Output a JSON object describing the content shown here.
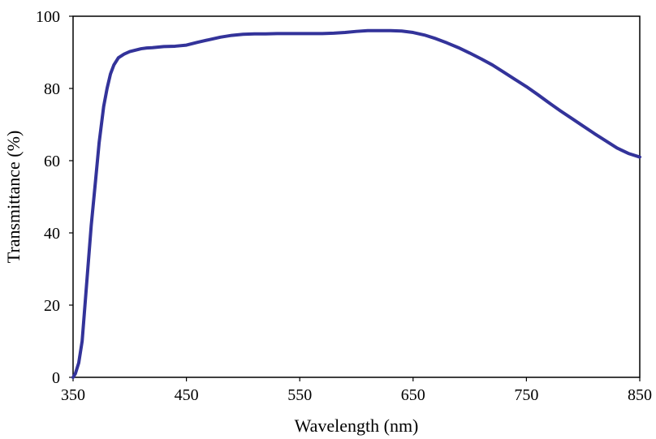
{
  "chart_data": {
    "type": "line",
    "title": "",
    "xlabel": "Wavelength (nm)",
    "ylabel": "Transmittance (%)",
    "xlim": [
      350,
      850
    ],
    "ylim": [
      0,
      100
    ],
    "xticks": [
      350,
      450,
      550,
      650,
      750,
      850
    ],
    "yticks": [
      0,
      20,
      40,
      60,
      80,
      100
    ],
    "xtick_labels": [
      "350",
      "450",
      "550",
      "650",
      "750",
      "850"
    ],
    "ytick_labels": [
      "0",
      "20",
      "40",
      "60",
      "80",
      "100"
    ],
    "grid": false,
    "legend": "none",
    "series": [
      {
        "color": "#33339a",
        "x": [
          350,
          352,
          355,
          358,
          360,
          363,
          366,
          370,
          373,
          377,
          380,
          383,
          386,
          390,
          395,
          400,
          405,
          410,
          415,
          420,
          430,
          440,
          450,
          460,
          470,
          480,
          490,
          500,
          510,
          520,
          530,
          540,
          550,
          560,
          570,
          580,
          590,
          600,
          610,
          620,
          630,
          640,
          650,
          660,
          670,
          680,
          690,
          700,
          710,
          720,
          730,
          740,
          750,
          760,
          770,
          780,
          790,
          800,
          810,
          820,
          830,
          840,
          850
        ],
        "y": [
          0,
          1,
          4,
          10,
          18,
          30,
          42,
          55,
          65,
          75,
          80,
          84,
          86.5,
          88.5,
          89.5,
          90.2,
          90.6,
          91,
          91.2,
          91.3,
          91.6,
          91.7,
          92,
          92.8,
          93.5,
          94.2,
          94.7,
          95,
          95.1,
          95.1,
          95.2,
          95.2,
          95.2,
          95.2,
          95.2,
          95.3,
          95.5,
          95.8,
          96,
          96,
          96,
          95.9,
          95.5,
          94.8,
          93.8,
          92.6,
          91.3,
          89.8,
          88.2,
          86.5,
          84.5,
          82.5,
          80.5,
          78.3,
          76,
          73.8,
          71.7,
          69.6,
          67.5,
          65.5,
          63.5,
          62,
          61
        ]
      }
    ]
  }
}
